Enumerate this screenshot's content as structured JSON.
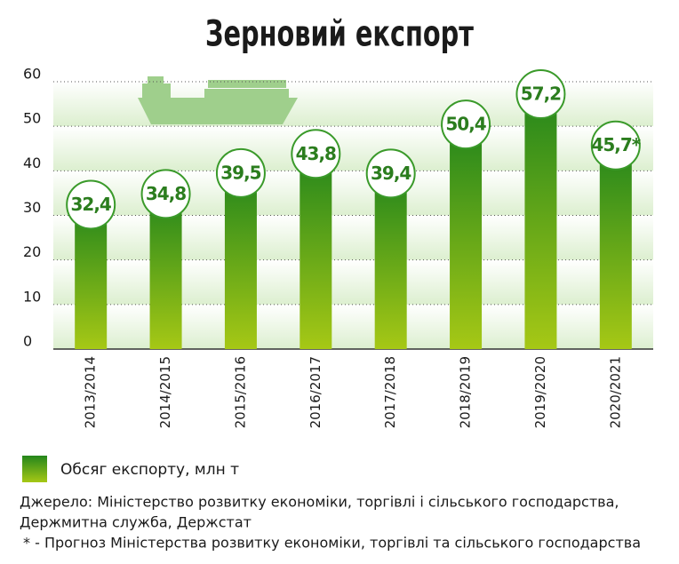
{
  "chart_data": {
    "type": "bar",
    "title": "Зерновий експорт",
    "categories": [
      "2013/2014",
      "2014/2015",
      "2015/2016",
      "2016/2017",
      "2017/2018",
      "2018/2019",
      "2019/2020",
      "2020/2021"
    ],
    "series": [
      {
        "name": "Обсяг експорту, млн т",
        "color": "#2e8b1e",
        "values": [
          32.4,
          34.8,
          39.5,
          43.8,
          39.4,
          50.4,
          57.2,
          45.7
        ],
        "value_labels": [
          "32,4",
          "34,8",
          "39,5",
          "43,8",
          "39,4",
          "50,4",
          "57,2",
          "45,7*"
        ]
      }
    ],
    "ylim": [
      0,
      60
    ],
    "yticks": [
      0,
      10,
      20,
      30,
      40,
      50,
      60
    ],
    "grid": true,
    "source": [
      "Джерело: Міністерство розвитку економіки, торгівлі і сільського господарства,",
      "Держмитна служба, Держстат"
    ],
    "note": "* - Прогноз Міністерства розвитку економіки, торгівлі та сільського господарства"
  }
}
